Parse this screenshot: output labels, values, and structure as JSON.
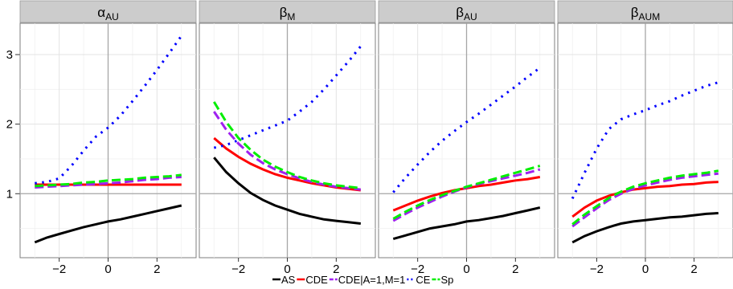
{
  "chart_data": {
    "type": "line",
    "x": [
      -3,
      -2.5,
      -2,
      -1.5,
      -1,
      -0.5,
      0,
      0.5,
      1,
      1.5,
      2,
      2.5,
      3
    ],
    "xlim": [
      -3.6,
      3.6
    ],
    "ylim": [
      0.08,
      3.45
    ],
    "x_ticks": [
      -2,
      0,
      2
    ],
    "x_tick_labels": [
      "−2",
      "0",
      "2"
    ],
    "y_ticks": [
      1,
      2,
      3
    ],
    "y_tick_labels": [
      "1",
      "2",
      "3"
    ],
    "reference_lines": {
      "x": 0,
      "y": 1
    },
    "grid": true,
    "legend_position": "bottom",
    "series": [
      {
        "name": "AS",
        "color": "#000000",
        "dash": "solid"
      },
      {
        "name": "CDE",
        "color": "#ff0000",
        "dash": "solid"
      },
      {
        "name": "CDE|A=1,M=1",
        "color": "#a020f0",
        "dash": "dashed"
      },
      {
        "name": "CE",
        "color": "#0000ff",
        "dash": "dotted"
      },
      {
        "name": "Sp",
        "color": "#00ee00",
        "dash": "dashed"
      }
    ],
    "panels": [
      {
        "title": "α",
        "title_sub": "AU",
        "values": {
          "AS": [
            0.3,
            0.37,
            0.42,
            0.47,
            0.52,
            0.56,
            0.6,
            0.63,
            0.67,
            0.71,
            0.75,
            0.79,
            0.83
          ],
          "CDE": [
            1.13,
            1.13,
            1.13,
            1.13,
            1.13,
            1.13,
            1.13,
            1.13,
            1.13,
            1.13,
            1.13,
            1.13,
            1.13
          ],
          "CDE|A=1,M=1": [
            1.09,
            1.1,
            1.11,
            1.12,
            1.13,
            1.14,
            1.15,
            1.16,
            1.18,
            1.2,
            1.21,
            1.23,
            1.24
          ],
          "CE": [
            1.15,
            1.17,
            1.22,
            1.4,
            1.62,
            1.82,
            1.95,
            2.12,
            2.33,
            2.55,
            2.78,
            3.02,
            3.27
          ],
          "Sp": [
            1.11,
            1.12,
            1.13,
            1.14,
            1.16,
            1.17,
            1.19,
            1.2,
            1.21,
            1.23,
            1.24,
            1.25,
            1.27
          ]
        }
      },
      {
        "title": "β",
        "title_sub": "M",
        "values": {
          "AS": [
            1.52,
            1.31,
            1.15,
            1.01,
            0.91,
            0.83,
            0.77,
            0.71,
            0.67,
            0.63,
            0.61,
            0.59,
            0.57
          ],
          "CDE": [
            1.8,
            1.65,
            1.53,
            1.43,
            1.35,
            1.28,
            1.23,
            1.19,
            1.15,
            1.12,
            1.09,
            1.07,
            1.05
          ],
          "CDE|A=1,M=1": [
            2.18,
            1.92,
            1.72,
            1.56,
            1.44,
            1.35,
            1.28,
            1.22,
            1.17,
            1.13,
            1.1,
            1.08,
            1.06
          ],
          "CE": [
            1.66,
            1.7,
            1.77,
            1.84,
            1.91,
            1.98,
            2.05,
            2.18,
            2.32,
            2.5,
            2.7,
            2.9,
            3.12
          ],
          "Sp": [
            2.32,
            2.03,
            1.8,
            1.63,
            1.49,
            1.39,
            1.31,
            1.24,
            1.19,
            1.15,
            1.12,
            1.1,
            1.08
          ]
        }
      },
      {
        "title": "β",
        "title_sub": "AU",
        "values": {
          "AS": [
            0.35,
            0.4,
            0.45,
            0.5,
            0.53,
            0.56,
            0.6,
            0.62,
            0.65,
            0.68,
            0.72,
            0.76,
            0.8
          ],
          "CDE": [
            0.76,
            0.83,
            0.9,
            0.96,
            1.01,
            1.05,
            1.08,
            1.11,
            1.13,
            1.16,
            1.19,
            1.21,
            1.24
          ],
          "CDE|A=1,M=1": [
            0.61,
            0.71,
            0.8,
            0.88,
            0.96,
            1.03,
            1.09,
            1.14,
            1.18,
            1.22,
            1.26,
            1.3,
            1.35
          ],
          "CE": [
            1.02,
            1.23,
            1.42,
            1.6,
            1.76,
            1.9,
            2.03,
            2.15,
            2.28,
            2.41,
            2.54,
            2.68,
            2.81
          ],
          "Sp": [
            0.64,
            0.74,
            0.83,
            0.91,
            0.98,
            1.04,
            1.1,
            1.15,
            1.2,
            1.25,
            1.3,
            1.35,
            1.4
          ]
        }
      },
      {
        "title": "β",
        "title_sub": "AUM",
        "values": {
          "AS": [
            0.3,
            0.39,
            0.46,
            0.52,
            0.57,
            0.6,
            0.62,
            0.64,
            0.66,
            0.67,
            0.69,
            0.71,
            0.72
          ],
          "CDE": [
            0.67,
            0.8,
            0.9,
            0.97,
            1.02,
            1.06,
            1.08,
            1.1,
            1.11,
            1.13,
            1.14,
            1.16,
            1.17
          ],
          "CDE|A=1,M=1": [
            0.53,
            0.66,
            0.79,
            0.91,
            1.0,
            1.07,
            1.12,
            1.16,
            1.2,
            1.23,
            1.25,
            1.27,
            1.29
          ],
          "CE": [
            0.93,
            1.3,
            1.65,
            1.93,
            2.07,
            2.14,
            2.2,
            2.27,
            2.33,
            2.41,
            2.48,
            2.55,
            2.6
          ],
          "Sp": [
            0.56,
            0.7,
            0.82,
            0.94,
            1.03,
            1.1,
            1.15,
            1.19,
            1.23,
            1.26,
            1.28,
            1.3,
            1.33
          ]
        }
      }
    ]
  }
}
